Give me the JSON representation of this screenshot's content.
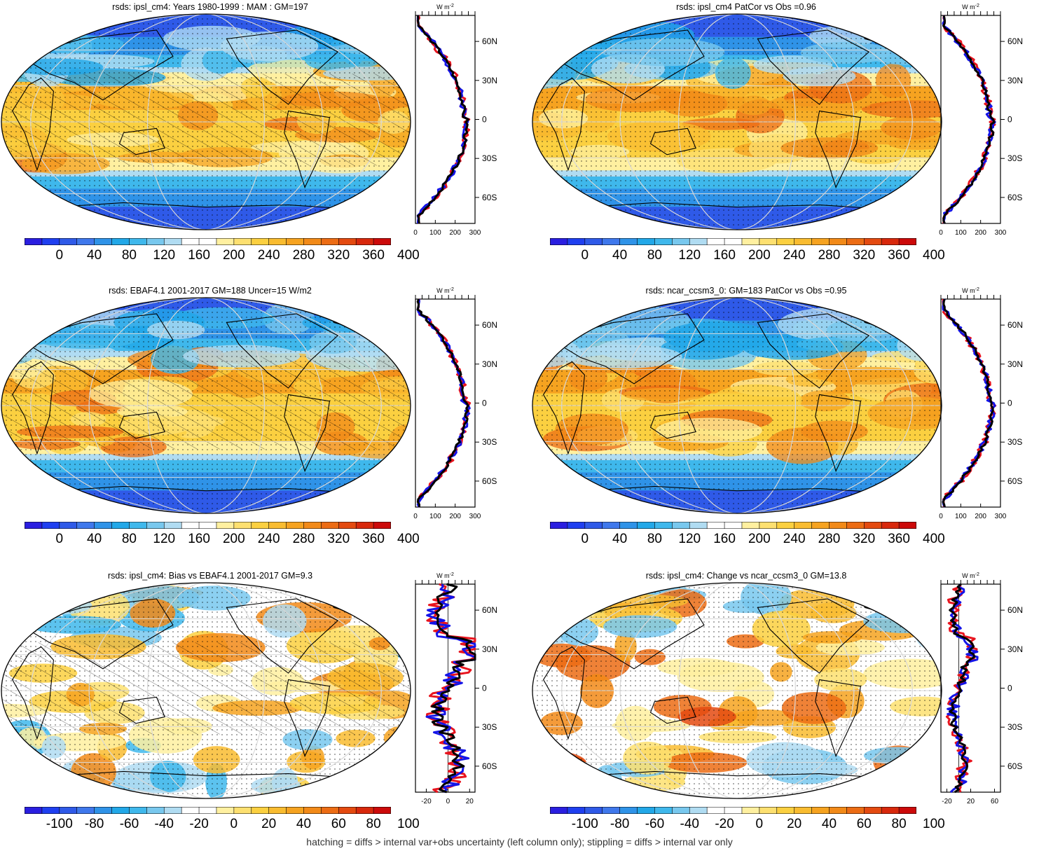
{
  "panels": [
    {
      "title": "rsds: ipsl_cm4: Years 1980-1999 : MAM : GM=197",
      "kind": "clim",
      "hatching": true,
      "zonal_unit": "W m",
      "zonal_unit_exp": "-2",
      "zonal_xticks": [
        "0",
        "100",
        "200",
        "300"
      ],
      "zonal_yticks": [
        "60N",
        "30N",
        "0",
        "30S",
        "60S"
      ],
      "colorbar_labels": [
        "0",
        "40",
        "80",
        "120",
        "160",
        "200",
        "240",
        "280",
        "320",
        "360",
        "400"
      ]
    },
    {
      "title": "rsds: ipsl_cm4 PatCor vs Obs =0.96",
      "kind": "clim",
      "hatching": false,
      "zonal_unit": "W m",
      "zonal_unit_exp": "-2",
      "zonal_xticks": [
        "0",
        "100",
        "200",
        "300"
      ],
      "zonal_yticks": [
        "60N",
        "30N",
        "0",
        "30S",
        "60S"
      ],
      "colorbar_labels": [
        "0",
        "40",
        "80",
        "120",
        "160",
        "200",
        "240",
        "280",
        "320",
        "360",
        "400"
      ]
    },
    {
      "title": "rsds: EBAF4.1 2001-2017 GM=188 Uncer=15 W/m2",
      "kind": "clim",
      "hatching": true,
      "zonal_unit": "W m",
      "zonal_unit_exp": "-2",
      "zonal_xticks": [
        "0",
        "100",
        "200",
        "300"
      ],
      "zonal_yticks": [
        "60N",
        "30N",
        "0",
        "30S",
        "60S"
      ],
      "colorbar_labels": [
        "0",
        "40",
        "80",
        "120",
        "160",
        "200",
        "240",
        "280",
        "320",
        "360",
        "400"
      ]
    },
    {
      "title": "rsds: ncar_ccsm3_0: GM=183 PatCor vs Obs =0.95",
      "kind": "clim",
      "hatching": false,
      "zonal_unit": "W m",
      "zonal_unit_exp": "-2",
      "zonal_xticks": [
        "0",
        "100",
        "200",
        "300"
      ],
      "zonal_yticks": [
        "60N",
        "30N",
        "0",
        "30S",
        "60S"
      ],
      "colorbar_labels": [
        "0",
        "40",
        "80",
        "120",
        "160",
        "200",
        "240",
        "280",
        "320",
        "360",
        "400"
      ]
    },
    {
      "title": "rsds: ipsl_cm4: Bias vs EBAF4.1 2001-2017 GM=9.3",
      "kind": "diff",
      "hatching": true,
      "zonal_unit": "W m",
      "zonal_unit_exp": "-2",
      "zonal_xticks": [
        "-20",
        "0",
        "20"
      ],
      "zonal_yticks": [
        "60N",
        "30N",
        "0",
        "30S",
        "60S"
      ],
      "colorbar_labels": [
        "-100",
        "-80",
        "-60",
        "-40",
        "-20",
        "0",
        "20",
        "40",
        "60",
        "80",
        "100"
      ]
    },
    {
      "title": "rsds: ipsl_cm4: Change vs ncar_ccsm3_0 GM=13.8",
      "kind": "diff",
      "hatching": false,
      "zonal_unit": "W m",
      "zonal_unit_exp": "-2",
      "zonal_xticks": [
        "-20",
        "20",
        "60"
      ],
      "zonal_yticks": [
        "60N",
        "30N",
        "0",
        "30S",
        "60S"
      ],
      "colorbar_labels": [
        "-100",
        "-80",
        "-60",
        "-40",
        "-20",
        "0",
        "20",
        "40",
        "60",
        "80",
        "100"
      ]
    }
  ],
  "colors": {
    "palette": [
      "#2a1ee0",
      "#1f3ff0",
      "#2f5ae8",
      "#3f78ec",
      "#2f93e8",
      "#22a8e8",
      "#3fb8ec",
      "#78c8ee",
      "#b0dcf2",
      "#ffffff",
      "#ffffff",
      "#fff0a0",
      "#fde070",
      "#fbd040",
      "#f9bc30",
      "#f6a320",
      "#f28a18",
      "#ec6c14",
      "#e44a10",
      "#d8280c",
      "#cc0a0a"
    ],
    "zonal_model": "#000000",
    "zonal_obs": "#e8141e",
    "zonal_other": "#1414e8"
  },
  "footer": "hatching = diffs > internal var+obs uncertainty (left column only); stippling = diffs > internal var only"
}
